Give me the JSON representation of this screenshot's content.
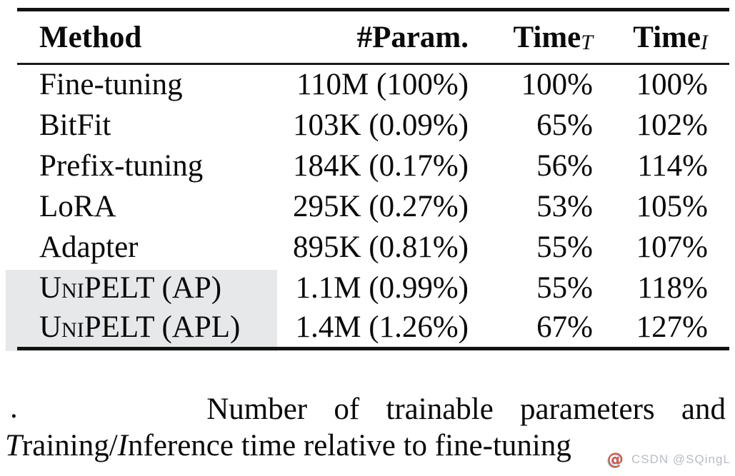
{
  "table": {
    "columns": [
      {
        "key": "method",
        "label": "Method",
        "sub": ""
      },
      {
        "key": "param",
        "label": "#Param.",
        "sub": ""
      },
      {
        "key": "time_t",
        "label": "Time",
        "sub": "T"
      },
      {
        "key": "time_i",
        "label": "Time",
        "sub": "I"
      }
    ],
    "rows": [
      {
        "method": "Fine-tuning",
        "param": "110M (100%)",
        "time_t": "100%",
        "time_i": "100%",
        "highlight": false,
        "smallcaps": false
      },
      {
        "method": "BitFit",
        "param": "103K (0.09%)",
        "time_t": "65%",
        "time_i": "102%",
        "highlight": false,
        "smallcaps": false
      },
      {
        "method": "Prefix-tuning",
        "param": "184K (0.17%)",
        "time_t": "56%",
        "time_i": "114%",
        "highlight": false,
        "smallcaps": false
      },
      {
        "method": "LoRA",
        "param": "295K (0.27%)",
        "time_t": "53%",
        "time_i": "105%",
        "highlight": false,
        "smallcaps": false
      },
      {
        "method": "Adapter",
        "param": "895K (0.81%)",
        "time_t": "55%",
        "time_i": "107%",
        "highlight": false,
        "smallcaps": false
      },
      {
        "method": "UniPELT (AP)",
        "param": "1.1M (0.99%)",
        "time_t": "55%",
        "time_i": "118%",
        "highlight": true,
        "smallcaps": true
      },
      {
        "method": "UniPELT (APL)",
        "param": "1.4M (1.26%)",
        "time_t": "67%",
        "time_i": "127%",
        "highlight": true,
        "smallcaps": true
      }
    ]
  },
  "caption": {
    "stray_mark": ".",
    "line1_words": [
      "Number",
      "of",
      "trainable",
      "parameters",
      "and"
    ],
    "line2_parts": [
      {
        "text": "T",
        "italic": true
      },
      {
        "text": "raining/",
        "italic": false
      },
      {
        "text": "I",
        "italic": true
      },
      {
        "text": "nference time relative to fine-tuning",
        "italic": false
      }
    ]
  },
  "watermark": {
    "logo": "@",
    "text": "CSDN @SQingL"
  },
  "colors": {
    "highlight": "#e7e8e9",
    "watermark_text": "#b7bec6",
    "watermark_logo": "#d4573d",
    "rule": "#121212"
  }
}
